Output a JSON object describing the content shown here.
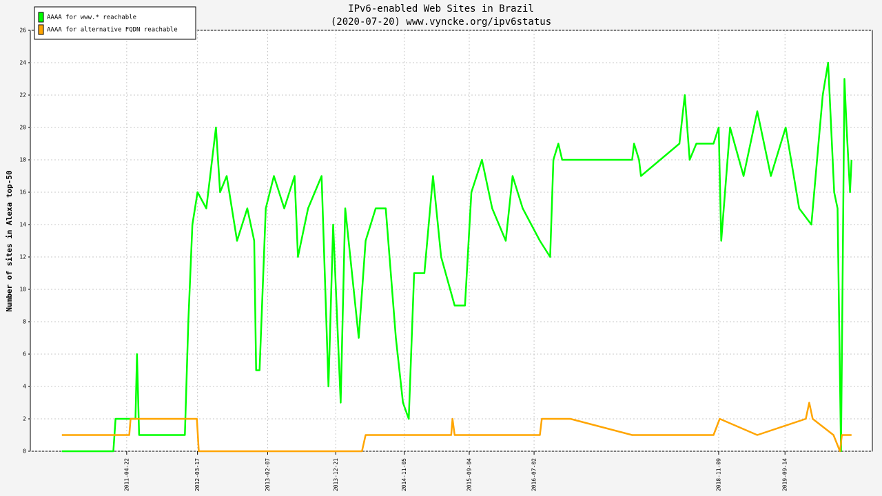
{
  "chart_data": {
    "type": "line",
    "title": "IPv6-enabled Web Sites in Brazil",
    "subtitle": "(2020-07-20) www.vyncke.org/ipv6status",
    "y_label": "Number of sites in Alexa top-50",
    "xlim": [
      "2010-01-28",
      "2020-10-25"
    ],
    "xticks": [
      "2011-04-22",
      "2012-03-17",
      "2013-02-07",
      "2013-12-21",
      "2014-11-05",
      "2015-09-04",
      "2016-07-02",
      "2018-11-09",
      "2019-09-14"
    ],
    "ylim": [
      0,
      26
    ],
    "yticks": [
      0,
      2,
      4,
      6,
      8,
      10,
      12,
      14,
      16,
      18,
      20,
      22,
      24,
      26
    ],
    "grid": true,
    "legend": "top-left",
    "series": [
      {
        "name": "AAAA for www.* reachable",
        "color": "#00ff00",
        "x": [
          "2010-06-24",
          "2011-02-19",
          "2011-03-01",
          "2011-06-02",
          "2011-06-09",
          "2011-06-19",
          "2012-01-18",
          "2012-02-03",
          "2012-02-22",
          "2012-03-17",
          "2012-04-27",
          "2012-06-11",
          "2012-06-30",
          "2012-07-31",
          "2012-09-17",
          "2012-11-04",
          "2012-12-06",
          "2012-12-15",
          "2012-12-31",
          "2013-01-29",
          "2013-03-08",
          "2013-04-25",
          "2013-06-12",
          "2013-06-28",
          "2013-08-14",
          "2013-10-16",
          "2013-11-17",
          "2013-12-09",
          "2014-01-13",
          "2014-02-03",
          "2014-04-07",
          "2014-05-09",
          "2014-06-25",
          "2014-08-11",
          "2014-09-27",
          "2014-10-30",
          "2014-11-26",
          "2014-12-21",
          "2015-02-07",
          "2015-03-19",
          "2015-04-26",
          "2015-06-28",
          "2015-08-15",
          "2015-09-14",
          "2015-11-02",
          "2015-12-20",
          "2016-02-21",
          "2016-03-24",
          "2016-05-10",
          "2016-07-29",
          "2016-09-15",
          "2016-09-30",
          "2016-10-23",
          "2016-11-10",
          "2017-10-02",
          "2017-10-11",
          "2017-11-03",
          "2017-11-12",
          "2018-05-10",
          "2018-06-04",
          "2018-06-27",
          "2018-07-28",
          "2018-10-16",
          "2018-11-09",
          "2018-11-21",
          "2019-01-01",
          "2019-03-05",
          "2019-05-08",
          "2019-07-10",
          "2019-09-17",
          "2019-11-19",
          "2020-01-15",
          "2020-03-08",
          "2020-04-02",
          "2020-04-30",
          "2020-05-16",
          "2020-06-01",
          "2020-06-17",
          "2020-06-27",
          "2020-07-13",
          "2020-07-20"
        ],
        "values": [
          0,
          0,
          2,
          2,
          6,
          1,
          1,
          8,
          14,
          16,
          15,
          20,
          16,
          17,
          13,
          15,
          13,
          5,
          5,
          15,
          17,
          15,
          17,
          12,
          15,
          17,
          4,
          14,
          3,
          15,
          7,
          13,
          15,
          15,
          7,
          3,
          2,
          11,
          11,
          17,
          12,
          9,
          9,
          16,
          18,
          15,
          13,
          17,
          15,
          13,
          12,
          18,
          19,
          18,
          18,
          19,
          18,
          17,
          19,
          22,
          18,
          19,
          19,
          20,
          13,
          20,
          17,
          21,
          17,
          20,
          15,
          14,
          22,
          24,
          16,
          15,
          0,
          23,
          20,
          16,
          18
        ]
      },
      {
        "name": "AAAA for alternative FQDN reachable",
        "color": "#ffa500",
        "x": [
          "2010-06-24",
          "2011-05-04",
          "2011-05-10",
          "2012-03-14",
          "2012-03-23",
          "2014-04-22",
          "2014-05-09",
          "2015-06-12",
          "2015-06-18",
          "2015-06-28",
          "2016-07-29",
          "2016-08-07",
          "2016-12-18",
          "2017-10-02",
          "2018-10-16",
          "2018-11-14",
          "2019-05-08",
          "2019-12-20",
          "2020-01-05",
          "2020-01-21",
          "2020-04-27",
          "2020-05-27",
          "2020-06-05",
          "2020-07-20"
        ],
        "values": [
          1,
          1,
          2,
          2,
          0,
          0,
          1,
          1,
          2,
          1,
          1,
          2,
          2,
          1,
          1,
          2,
          1,
          2,
          3,
          2,
          1,
          0,
          1,
          1
        ]
      }
    ]
  }
}
